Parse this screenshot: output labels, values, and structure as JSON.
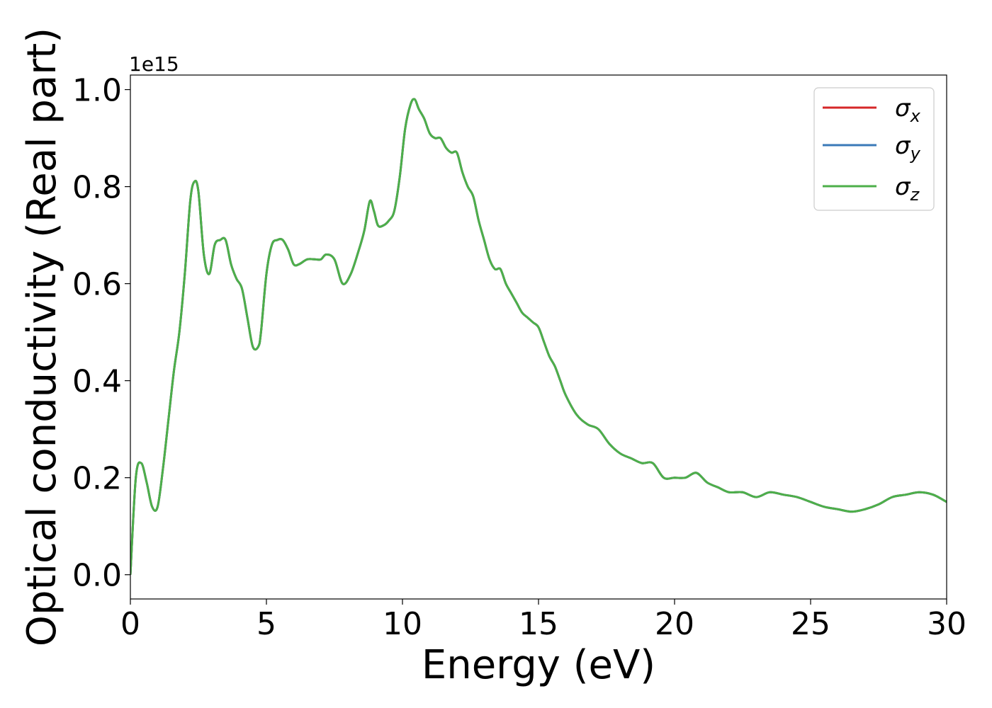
{
  "chart_data": {
    "type": "line",
    "title": "",
    "xlabel": "Energy (eV)",
    "ylabel": "Optical conductivity (Real part)",
    "y_offset_label": "1e15",
    "xlim": [
      0,
      30
    ],
    "ylim": [
      -0.05,
      1.03
    ],
    "y_scale_factor": 1000000000000000.0,
    "xticks": [
      0,
      5,
      10,
      15,
      20,
      25,
      30
    ],
    "xtick_labels": [
      "0",
      "5",
      "10",
      "15",
      "20",
      "25",
      "30"
    ],
    "yticks": [
      0.0,
      0.2,
      0.4,
      0.6,
      0.8,
      1.0
    ],
    "ytick_labels": [
      "0.0",
      "0.2",
      "0.4",
      "0.6",
      "0.8",
      "1.0"
    ],
    "grid": false,
    "legend_position": "top-right",
    "series": [
      {
        "name": "σx",
        "symbol": "σ",
        "subscript": "x",
        "color": "#d62728"
      },
      {
        "name": "σy",
        "symbol": "σ",
        "subscript": "y",
        "color": "#3a7ab8"
      },
      {
        "name": "σz",
        "symbol": "σ",
        "subscript": "z",
        "color": "#4daf4a"
      }
    ],
    "x": [
      0,
      0.2,
      0.4,
      0.6,
      0.8,
      1.0,
      1.2,
      1.4,
      1.6,
      1.8,
      2.0,
      2.2,
      2.35,
      2.5,
      2.7,
      2.9,
      3.1,
      3.3,
      3.5,
      3.7,
      3.9,
      4.1,
      4.3,
      4.5,
      4.7,
      4.8,
      5.0,
      5.2,
      5.4,
      5.6,
      5.8,
      6.0,
      6.2,
      6.5,
      6.8,
      7.0,
      7.2,
      7.5,
      7.8,
      8.1,
      8.4,
      8.6,
      8.8,
      8.95,
      9.1,
      9.3,
      9.5,
      9.7,
      9.9,
      10.1,
      10.3,
      10.45,
      10.6,
      10.8,
      11.0,
      11.2,
      11.4,
      11.6,
      11.8,
      12.0,
      12.2,
      12.4,
      12.6,
      12.8,
      13.0,
      13.2,
      13.4,
      13.6,
      13.8,
      14.0,
      14.2,
      14.4,
      14.6,
      14.8,
      15.0,
      15.2,
      15.4,
      15.6,
      15.8,
      16.0,
      16.4,
      16.8,
      17.2,
      17.6,
      18.0,
      18.4,
      18.8,
      19.2,
      19.6,
      20.0,
      20.4,
      20.8,
      21.2,
      21.6,
      22.0,
      22.5,
      23.0,
      23.5,
      24.0,
      24.5,
      25.0,
      25.5,
      26.0,
      26.5,
      27.0,
      27.5,
      28.0,
      28.5,
      29.0,
      29.5,
      30.0
    ],
    "y": [
      0.0,
      0.2,
      0.23,
      0.19,
      0.14,
      0.14,
      0.22,
      0.32,
      0.42,
      0.5,
      0.62,
      0.77,
      0.81,
      0.79,
      0.66,
      0.62,
      0.68,
      0.69,
      0.69,
      0.64,
      0.61,
      0.59,
      0.53,
      0.47,
      0.47,
      0.5,
      0.62,
      0.68,
      0.69,
      0.69,
      0.67,
      0.64,
      0.64,
      0.65,
      0.65,
      0.65,
      0.66,
      0.65,
      0.6,
      0.62,
      0.67,
      0.71,
      0.77,
      0.75,
      0.72,
      0.72,
      0.73,
      0.75,
      0.82,
      0.92,
      0.97,
      0.98,
      0.96,
      0.94,
      0.91,
      0.9,
      0.9,
      0.88,
      0.87,
      0.87,
      0.83,
      0.8,
      0.78,
      0.73,
      0.69,
      0.65,
      0.63,
      0.63,
      0.6,
      0.58,
      0.56,
      0.54,
      0.53,
      0.52,
      0.51,
      0.48,
      0.45,
      0.43,
      0.4,
      0.37,
      0.33,
      0.31,
      0.3,
      0.27,
      0.25,
      0.24,
      0.23,
      0.23,
      0.2,
      0.2,
      0.2,
      0.21,
      0.19,
      0.18,
      0.17,
      0.17,
      0.16,
      0.17,
      0.165,
      0.16,
      0.15,
      0.14,
      0.135,
      0.13,
      0.135,
      0.145,
      0.16,
      0.165,
      0.17,
      0.165,
      0.15
    ]
  }
}
